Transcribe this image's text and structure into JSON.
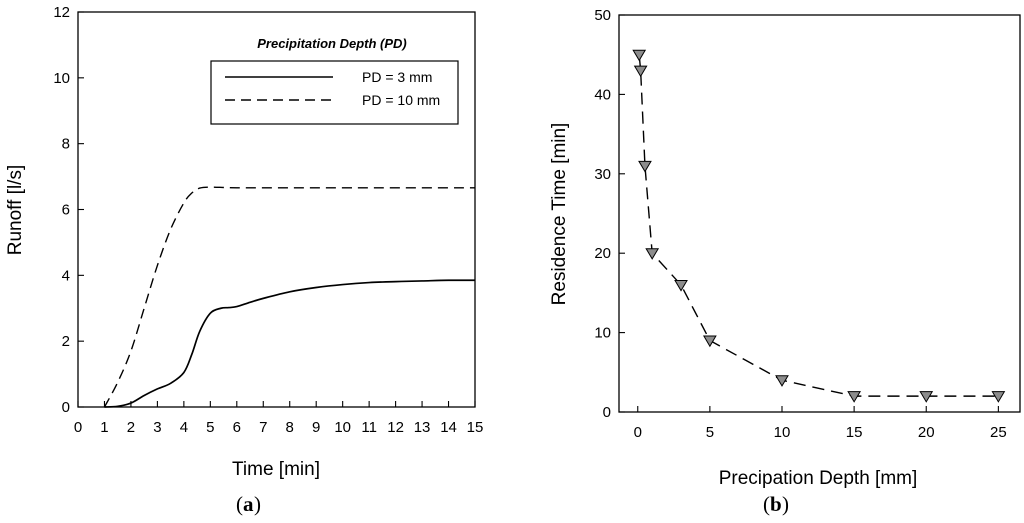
{
  "chart_data": [
    {
      "id": "a",
      "type": "line",
      "panel_label": "a",
      "xlabel": "Time [min]",
      "ylabel": "Runoff [l/s]",
      "xlim": [
        0,
        15
      ],
      "ylim": [
        0,
        12
      ],
      "xticks": [
        "0",
        "1",
        "2",
        "3",
        "4",
        "5",
        "6",
        "7",
        "8",
        "9",
        "10",
        "11",
        "12",
        "13",
        "14",
        "15"
      ],
      "yticks": [
        "0",
        "2",
        "4",
        "6",
        "8",
        "10",
        "12"
      ],
      "grid": false,
      "legend": {
        "title": "Precipitation Depth (PD)",
        "placement": "top-right"
      },
      "series": [
        {
          "name": "PD = 3 mm",
          "style": "solid",
          "x": [
            1,
            1.5,
            2,
            2.5,
            3,
            3.5,
            4,
            4.3,
            4.6,
            5,
            5.4,
            5.7,
            6,
            6.5,
            7,
            8,
            9,
            10,
            11,
            12,
            13,
            14,
            15
          ],
          "y": [
            0,
            0.02,
            0.12,
            0.35,
            0.55,
            0.72,
            1.05,
            1.6,
            2.3,
            2.85,
            3.0,
            3.02,
            3.05,
            3.18,
            3.3,
            3.5,
            3.63,
            3.72,
            3.78,
            3.81,
            3.83,
            3.85,
            3.85
          ]
        },
        {
          "name": "PD = 10 mm",
          "style": "dashed",
          "x": [
            1,
            1.5,
            2,
            2.5,
            3,
            3.5,
            4,
            4.3,
            4.6,
            5,
            6,
            8,
            10,
            12,
            15
          ],
          "y": [
            0,
            0.75,
            1.7,
            3.0,
            4.3,
            5.4,
            6.2,
            6.5,
            6.65,
            6.68,
            6.66,
            6.66,
            6.66,
            6.66,
            6.66
          ]
        }
      ]
    },
    {
      "id": "b",
      "type": "line",
      "panel_label": "b",
      "xlabel": "Precipation Depth [mm]",
      "ylabel": "Residence Time [min]",
      "xlim": [
        -1.3,
        26.5
      ],
      "ylim": [
        0,
        50
      ],
      "xticks": [
        "0",
        "5",
        "10",
        "15",
        "20",
        "25"
      ],
      "yticks": [
        "0",
        "10",
        "20",
        "30",
        "40",
        "50"
      ],
      "grid": false,
      "marker": "downward-triangle",
      "series": [
        {
          "name": "Residence Time",
          "style": "dashed",
          "x": [
            0.1,
            0.2,
            0.5,
            1,
            3,
            5,
            10,
            15,
            20,
            25
          ],
          "y": [
            45,
            43,
            31,
            20,
            16,
            9,
            4,
            2,
            2,
            2
          ]
        }
      ]
    }
  ]
}
